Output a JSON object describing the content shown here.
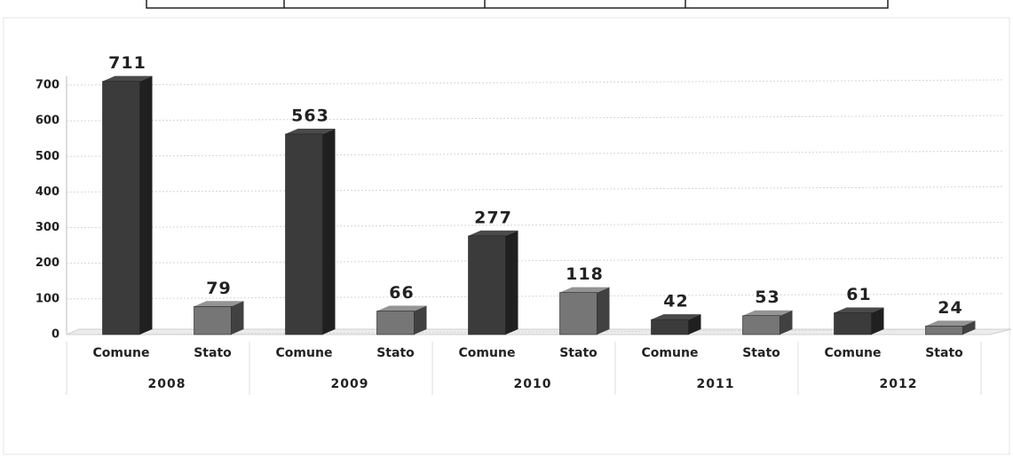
{
  "chart_data": {
    "type": "bar",
    "categories": [
      "Comune",
      "Stato",
      "Comune",
      "Stato",
      "Comune",
      "Stato",
      "Comune",
      "Stato",
      "Comune",
      "Stato"
    ],
    "groups": [
      "2008",
      "2009",
      "2010",
      "2011",
      "2012"
    ],
    "values": [
      711,
      79,
      563,
      66,
      277,
      118,
      42,
      53,
      61,
      24
    ],
    "colors": [
      "#3b3b3b",
      "#767676",
      "#3b3b3b",
      "#767676",
      "#3b3b3b",
      "#767676",
      "#3b3b3b",
      "#767676",
      "#3b3b3b",
      "#767676"
    ],
    "ylim": [
      0,
      700
    ],
    "yticks": [
      0,
      100,
      200,
      300,
      400,
      500,
      600,
      700
    ],
    "grid": true
  }
}
